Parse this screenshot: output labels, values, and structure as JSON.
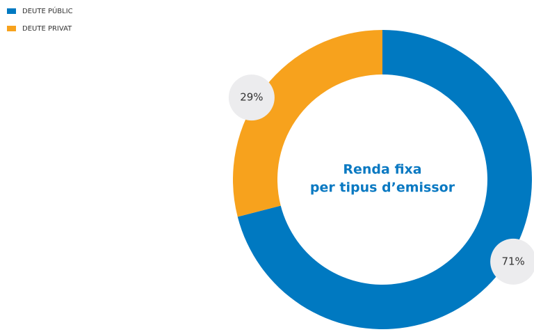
{
  "chart_data": {
    "type": "donut",
    "center_text": [
      "Renda fixa",
      "per tipus d’emissor"
    ],
    "categories": [
      "DEUTE PÚBLIC",
      "DEUTE PRIVAT"
    ],
    "values": [
      71,
      29
    ],
    "value_labels": [
      "71%",
      "29%"
    ],
    "colors": [
      "#0079c1",
      "#f7a21d"
    ],
    "legend": "top-left"
  }
}
